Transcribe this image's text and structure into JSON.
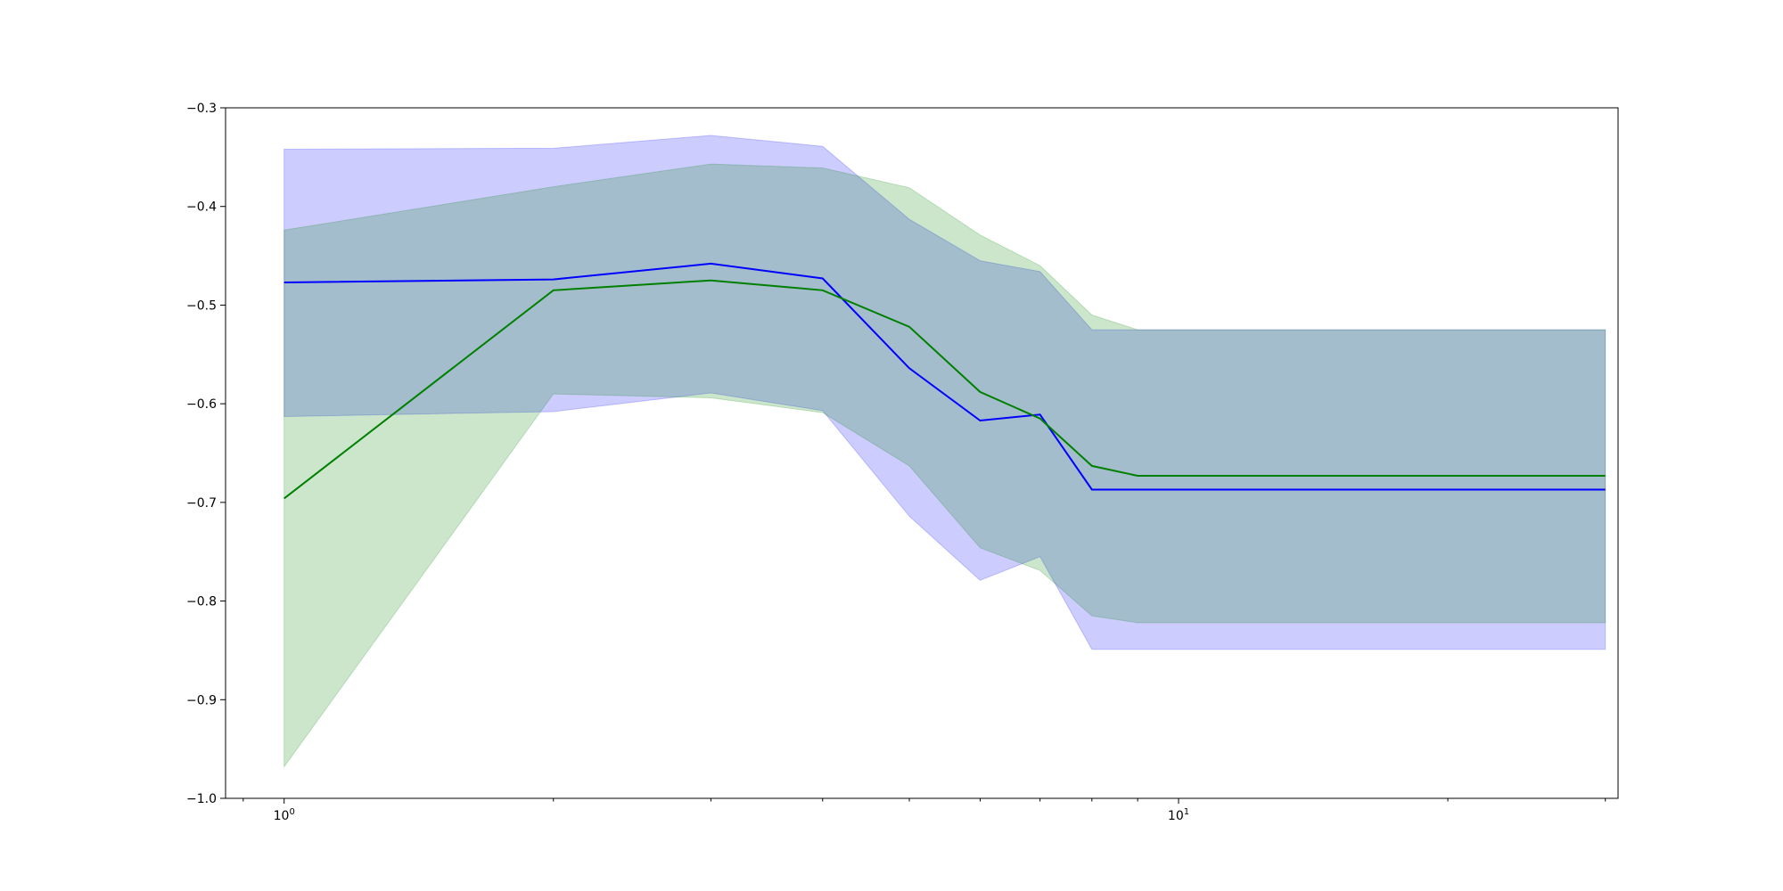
{
  "chart_data": {
    "type": "line",
    "title": "",
    "xlabel": "",
    "ylabel": "",
    "x_scale": "log",
    "xlim": [
      0.86,
      31
    ],
    "ylim": [
      -1.0,
      -0.3
    ],
    "grid": false,
    "legend": "none",
    "x": [
      1,
      2,
      3,
      4,
      5,
      6,
      7,
      8,
      9,
      30
    ],
    "x_ticks": [
      {
        "value": 1,
        "base": "10",
        "exp": "0"
      },
      {
        "value": 10,
        "base": "10",
        "exp": "1"
      }
    ],
    "y_ticks": [
      -1.0,
      -0.9,
      -0.8,
      -0.7,
      -0.6,
      -0.5,
      -0.4,
      -0.3
    ],
    "y_tick_labels": [
      "−1.0",
      "−0.9",
      "−0.8",
      "−0.7",
      "−0.6",
      "−0.5",
      "−0.4",
      "−0.3"
    ],
    "series": [
      {
        "color": "#0000ff",
        "band_color": "#0000ff",
        "band_opacity": 0.2,
        "mean": [
          -0.477,
          -0.474,
          -0.458,
          -0.473,
          -0.564,
          -0.617,
          -0.611,
          -0.687,
          -0.687,
          -0.687
        ],
        "upper": [
          -0.342,
          -0.341,
          -0.328,
          -0.339,
          -0.413,
          -0.455,
          -0.466,
          -0.525,
          -0.525,
          -0.525
        ],
        "lower": [
          -0.613,
          -0.608,
          -0.589,
          -0.607,
          -0.714,
          -0.779,
          -0.755,
          -0.849,
          -0.849,
          -0.849
        ]
      },
      {
        "color": "#008000",
        "band_color": "#008000",
        "band_opacity": 0.2,
        "mean": [
          -0.696,
          -0.485,
          -0.475,
          -0.485,
          -0.522,
          -0.588,
          -0.615,
          -0.663,
          -0.673,
          -0.673
        ],
        "upper": [
          -0.424,
          -0.38,
          -0.357,
          -0.361,
          -0.381,
          -0.429,
          -0.46,
          -0.51,
          -0.525,
          -0.525
        ],
        "lower": [
          -0.968,
          -0.59,
          -0.594,
          -0.609,
          -0.663,
          -0.746,
          -0.769,
          -0.815,
          -0.822,
          -0.822
        ]
      }
    ]
  }
}
